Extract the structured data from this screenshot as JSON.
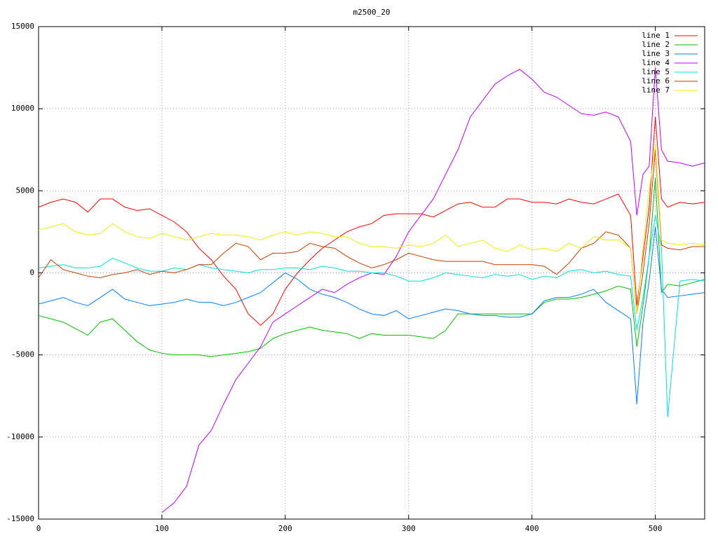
{
  "chart_data": {
    "type": "line",
    "title": "m2500_20",
    "x": [
      0,
      10,
      20,
      30,
      40,
      50,
      60,
      70,
      80,
      90,
      100,
      110,
      120,
      130,
      140,
      150,
      160,
      170,
      180,
      190,
      200,
      210,
      220,
      230,
      240,
      250,
      260,
      270,
      280,
      290,
      300,
      310,
      320,
      330,
      340,
      350,
      360,
      370,
      380,
      390,
      400,
      410,
      420,
      430,
      440,
      450,
      460,
      470,
      480,
      485,
      490,
      495,
      500,
      505,
      510,
      520,
      530,
      540
    ],
    "xlim": [
      0,
      540
    ],
    "xticks": [
      0,
      100,
      200,
      300,
      400,
      500
    ],
    "ylim": [
      -15000,
      15000
    ],
    "yticks": [
      -15000,
      -10000,
      -5000,
      0,
      5000,
      10000,
      15000
    ],
    "grid": true,
    "legend": "top-right",
    "series": [
      {
        "name": "line 1",
        "color": "#ff0000",
        "values": [
          4000,
          4300,
          4500,
          4300,
          3700,
          4500,
          4500,
          4000,
          3800,
          3900,
          3500,
          3100,
          2500,
          1500,
          800,
          -200,
          -1000,
          -2500,
          -3200,
          -2500,
          -1000,
          0,
          800,
          1500,
          2000,
          2500,
          2800,
          3000,
          3500,
          3600,
          3600,
          3600,
          3400,
          3800,
          4200,
          4300,
          4000,
          4000,
          4500,
          4500,
          4300,
          4300,
          4200,
          4500,
          4300,
          4200,
          4500,
          4800,
          3500,
          -2000,
          1000,
          4000,
          9500,
          4500,
          4000,
          4300,
          4200,
          4300
        ]
      },
      {
        "name": "line 2",
        "color": "#00c000",
        "values": [
          -2600,
          -2800,
          -3000,
          -3400,
          -3800,
          -3000,
          -2800,
          -3500,
          -4200,
          -4700,
          -4900,
          -5000,
          -5000,
          -5000,
          -5100,
          -5000,
          -4900,
          -4800,
          -4600,
          -4000,
          -3700,
          -3500,
          -3300,
          -3500,
          -3600,
          -3700,
          -4000,
          -3700,
          -3800,
          -3800,
          -3800,
          -3900,
          -4000,
          -3500,
          -2500,
          -2500,
          -2500,
          -2500,
          -2500,
          -2500,
          -2500,
          -1800,
          -1600,
          -1600,
          -1500,
          -1300,
          -1100,
          -800,
          -1000,
          -4500,
          -2000,
          1000,
          5800,
          -1200,
          -700,
          -800,
          -600,
          -400
        ]
      },
      {
        "name": "line 3",
        "color": "#0080ff",
        "values": [
          -1900,
          -1700,
          -1500,
          -1800,
          -2000,
          -1500,
          -1000,
          -1600,
          -1800,
          -2000,
          -1900,
          -1800,
          -1600,
          -1800,
          -1800,
          -2000,
          -1800,
          -1500,
          -1200,
          -600,
          0,
          -400,
          -1000,
          -1300,
          -1500,
          -1800,
          -2200,
          -2500,
          -2600,
          -2300,
          -2800,
          -2600,
          -2400,
          -2200,
          -2300,
          -2500,
          -2600,
          -2600,
          -2700,
          -2700,
          -2500,
          -1700,
          -1500,
          -1500,
          -1300,
          -1000,
          -1800,
          -2300,
          -2800,
          -8000,
          -3000,
          -500,
          2800,
          -1000,
          -1500,
          -1400,
          -1300,
          -1200
        ]
      },
      {
        "name": "line 4",
        "color": "#c000ff",
        "values": [
          null,
          null,
          null,
          null,
          null,
          null,
          null,
          null,
          null,
          null,
          -14600,
          -14000,
          -13000,
          -10500,
          -9600,
          -8000,
          -6500,
          -5500,
          -4500,
          -3000,
          -2500,
          -2000,
          -1500,
          -1000,
          -1200,
          -700,
          -300,
          0,
          -100,
          1000,
          2500,
          3500,
          4500,
          6000,
          7500,
          9500,
          10500,
          11500,
          12000,
          12400,
          11800,
          11000,
          10700,
          10200,
          9700,
          9600,
          9800,
          9500,
          8000,
          3500,
          6000,
          6500,
          12500,
          7500,
          6800,
          6700,
          6500,
          6700
        ]
      },
      {
        "name": "line 5",
        "color": "#00e0e0",
        "values": [
          300,
          400,
          500,
          300,
          300,
          400,
          900,
          600,
          300,
          100,
          100,
          300,
          200,
          500,
          300,
          200,
          100,
          0,
          200,
          200,
          300,
          300,
          200,
          400,
          300,
          100,
          100,
          0,
          0,
          -200,
          -500,
          -500,
          -300,
          0,
          -100,
          -200,
          -300,
          -100,
          -200,
          -100,
          -400,
          -200,
          -300,
          100,
          200,
          0,
          100,
          -100,
          -200,
          -3500,
          -1500,
          1000,
          3500,
          1500,
          -8800,
          -500,
          -400,
          -500
        ]
      },
      {
        "name": "line 6",
        "color": "#c04000",
        "values": [
          -300,
          800,
          200,
          0,
          -200,
          -300,
          -100,
          0,
          200,
          -100,
          100,
          0,
          200,
          500,
          500,
          1200,
          1800,
          1600,
          800,
          1200,
          1200,
          1300,
          1800,
          1600,
          1500,
          1000,
          600,
          300,
          500,
          800,
          1200,
          1000,
          800,
          700,
          700,
          700,
          700,
          500,
          500,
          500,
          500,
          400,
          -100,
          600,
          1500,
          1800,
          2500,
          2300,
          1500,
          -2500,
          0,
          3000,
          7500,
          1700,
          1500,
          1400,
          1600,
          1600
        ]
      },
      {
        "name": "line 7",
        "color": "#eeee00",
        "values": [
          2600,
          2800,
          3000,
          2500,
          2300,
          2400,
          3000,
          2500,
          2200,
          2100,
          2400,
          2200,
          2000,
          2200,
          2400,
          2300,
          2300,
          2200,
          2000,
          2300,
          2500,
          2300,
          2500,
          2400,
          2200,
          2200,
          1800,
          1600,
          1600,
          1500,
          1700,
          1600,
          1800,
          2300,
          1600,
          1800,
          2000,
          1500,
          1300,
          1700,
          1400,
          1500,
          1300,
          1800,
          1500,
          2200,
          2000,
          2000,
          1500,
          -2500,
          1500,
          5000,
          7800,
          2000,
          1800,
          1700,
          1800,
          1700
        ]
      }
    ]
  }
}
